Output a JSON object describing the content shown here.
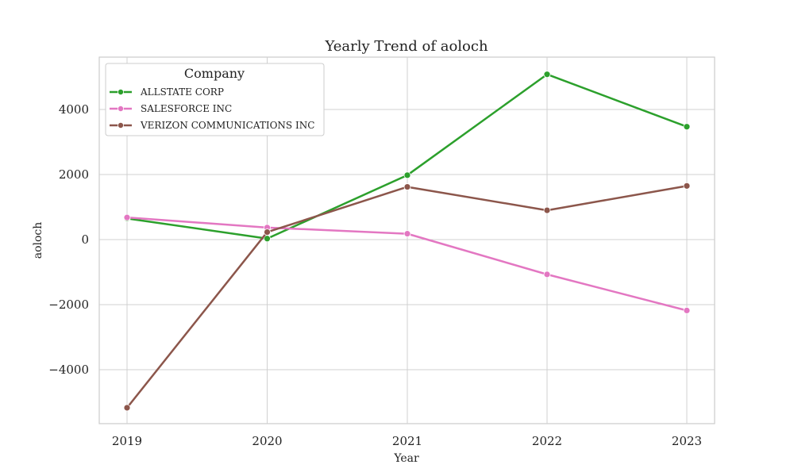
{
  "chart_data": {
    "type": "line",
    "title": "Yearly Trend of aoloch",
    "xlabel": "Year",
    "ylabel": "aoloch",
    "x": [
      "2019",
      "2020",
      "2021",
      "2022",
      "2023"
    ],
    "yticks": [
      -4000,
      -2000,
      0,
      2000,
      4000
    ],
    "ytick_labels": [
      "−4000",
      "−2000",
      "0",
      "2000",
      "4000"
    ],
    "ylim": [
      -5600,
      5600
    ],
    "grid": true,
    "legend": {
      "title": "Company",
      "placement": "top-left"
    },
    "series": [
      {
        "name": "ALLSTATE CORP",
        "color": "#2ca02c",
        "values": [
          650,
          30,
          1980,
          5080,
          3470
        ]
      },
      {
        "name": "SALESFORCE INC",
        "color": "#e377c2",
        "values": [
          680,
          370,
          180,
          -1070,
          -2180
        ]
      },
      {
        "name": "VERIZON COMMUNICATIONS INC",
        "color": "#8c564b",
        "values": [
          -5170,
          230,
          1620,
          900,
          1650
        ]
      }
    ]
  }
}
